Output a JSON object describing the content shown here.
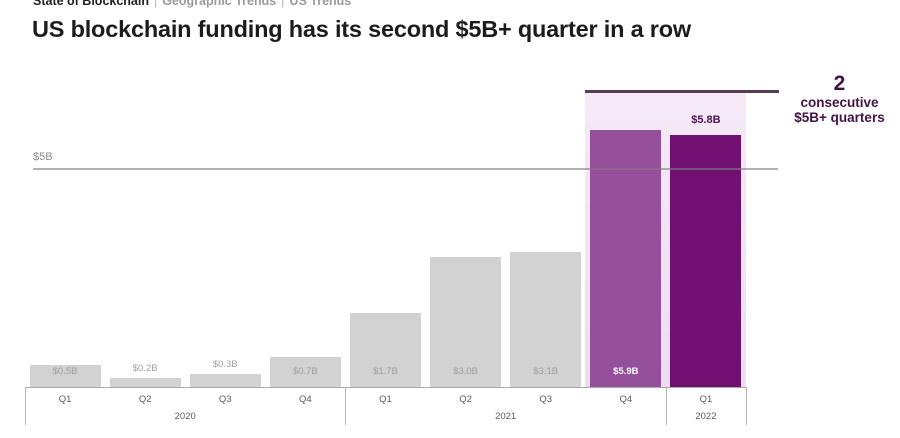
{
  "breadcrumb": {
    "items": [
      "State of Blockchain",
      "Geographic Trends",
      "US Trends"
    ],
    "separator": "|"
  },
  "title": "US blockchain funding has its second $5B+ quarter in a row",
  "chart_data": {
    "type": "bar",
    "title": "US blockchain funding has its second $5B+ quarter in a row",
    "unit": "USD billions per quarter",
    "categories": [
      "Q1 2020",
      "Q2 2020",
      "Q3 2020",
      "Q4 2020",
      "Q1 2021",
      "Q2 2021",
      "Q3 2021",
      "Q4 2021",
      "Q1 2022"
    ],
    "values": [
      0.5,
      0.2,
      0.3,
      0.7,
      1.7,
      3.0,
      3.1,
      5.9,
      5.8
    ],
    "bars": [
      {
        "quarter": "Q1",
        "value": 0.5,
        "label": "$0.5B",
        "style": "muted",
        "label_pos": "inside"
      },
      {
        "quarter": "Q2",
        "value": 0.2,
        "label": "$0.2B",
        "style": "muted",
        "label_pos": "above"
      },
      {
        "quarter": "Q3",
        "value": 0.3,
        "label": "$0.3B",
        "style": "muted",
        "label_pos": "above"
      },
      {
        "quarter": "Q4",
        "value": 0.7,
        "label": "$0.7B",
        "style": "muted",
        "label_pos": "inside"
      },
      {
        "quarter": "Q1",
        "value": 1.7,
        "label": "$1.7B",
        "style": "muted",
        "label_pos": "inside"
      },
      {
        "quarter": "Q2",
        "value": 3.0,
        "label": "$3.0B",
        "style": "muted",
        "label_pos": "inside"
      },
      {
        "quarter": "Q3",
        "value": 3.1,
        "label": "$3.1B",
        "style": "muted",
        "label_pos": "inside"
      },
      {
        "quarter": "Q4",
        "value": 5.9,
        "label": "$5.9B",
        "style": "highlight",
        "label_pos": "inside"
      },
      {
        "quarter": "Q1",
        "value": 5.8,
        "label": "$5.8B",
        "style": "highlight-strong",
        "label_pos": "above-accent"
      }
    ],
    "year_groups": [
      {
        "label": "2020",
        "span": 4
      },
      {
        "label": "2021",
        "span": 4
      },
      {
        "label": "2022",
        "span": 1
      }
    ],
    "reference_line": {
      "label": "$5B",
      "value": 5
    },
    "highlight_span": {
      "from_category": "Q4 2021",
      "to_category": "Q1 2022"
    },
    "annotation": {
      "number": "2",
      "line1": "consecutive",
      "line2": "$5B+ quarters"
    },
    "ylim": [
      0,
      6.8
    ],
    "legend": null,
    "grid": false,
    "colors": {
      "bar_muted": "#d2d2d2",
      "bar_highlight": "#964f9b",
      "bar_highlight_strong": "#711073",
      "label_muted": "#a09d9d",
      "label_on_highlight": "#ffffff",
      "label_accent": "#4f1253",
      "highlight_region_top": "#f5eaf6",
      "highlight_region_bottom": "#eedcf0",
      "highlight_line": "#553c57",
      "annotation_text": "#431244",
      "reference_line": "#8c8c8c",
      "reference_label": "#8a8a8a",
      "axis": "#a8a8a8",
      "axis_tick": "#b5b5b5",
      "axis_text": "#5a5a5a",
      "title_text": "#1c1c1c"
    }
  }
}
